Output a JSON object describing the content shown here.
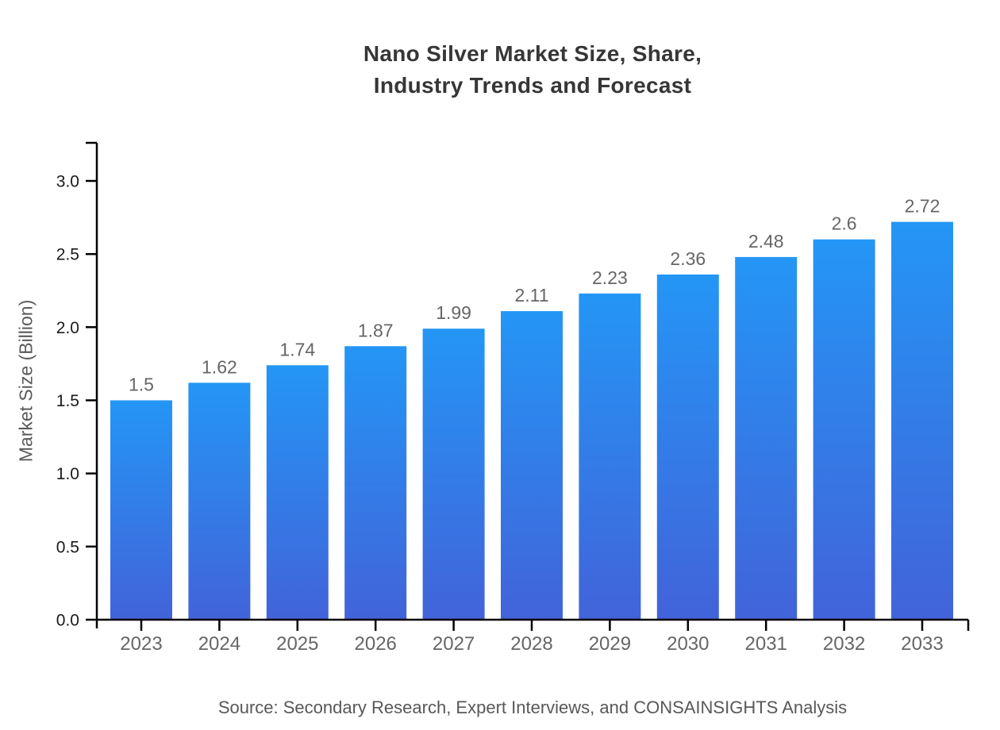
{
  "title": {
    "line1": "Nano Silver Market Size, Share,",
    "line2": "Industry Trends and Forecast"
  },
  "source": "Source: Secondary Research, Expert Interviews, and CONSAINSIGHTS Analysis",
  "chart_data": {
    "type": "bar",
    "title": "Nano Silver Market Size, Share, Industry Trends and Forecast",
    "categories": [
      "2023",
      "2024",
      "2025",
      "2026",
      "2027",
      "2028",
      "2029",
      "2030",
      "2031",
      "2032",
      "2033"
    ],
    "values": [
      1.5,
      1.62,
      1.74,
      1.87,
      1.99,
      2.11,
      2.23,
      2.36,
      2.48,
      2.6,
      2.72
    ],
    "value_labels": [
      "1.5",
      "1.62",
      "1.74",
      "1.87",
      "1.99",
      "2.11",
      "2.23",
      "2.36",
      "2.48",
      "2.6",
      "2.72"
    ],
    "xlabel": "",
    "ylabel": "Market Size (Billion)",
    "ylim": [
      0,
      3.26
    ],
    "yticks": [
      0.0,
      0.5,
      1.0,
      1.5,
      2.0,
      2.5,
      3.0
    ],
    "ytick_labels": [
      "0.0",
      "0.5",
      "1.0",
      "1.5",
      "2.0",
      "2.5",
      "3.0"
    ],
    "grid": false,
    "legend": false,
    "colors": {
      "bar_gradient_top": "#2496f5",
      "bar_gradient_bottom": "#4263d9",
      "axis": "#000000",
      "ytick_label": "#1a1a1a",
      "xtick_label": "#666666",
      "value_label": "#666666",
      "title": "#363636",
      "source": "#585858"
    }
  }
}
